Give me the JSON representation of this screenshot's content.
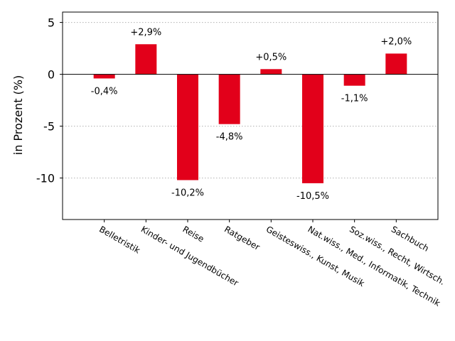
{
  "chart_data": {
    "type": "bar",
    "ylabel": "in Prozent (%)",
    "xlabel": "",
    "ylim": [
      -14,
      6
    ],
    "yticks": [
      5,
      0,
      -5,
      -10
    ],
    "ytick_labels": [
      "5",
      "0",
      "-5",
      "-10"
    ],
    "grid": "horizontal-dotted",
    "bar_color": "#e2001a",
    "categories": [
      "Belletristik",
      "Kinder- und Jugendbücher",
      "Reise",
      "Ratgeber",
      "Geisteswiss., Kunst, Musik",
      "Nat.wiss., Med., Informatik, Technik",
      "Soz.wiss., Recht, Wirtsch.",
      "Sachbuch"
    ],
    "values": [
      -0.4,
      2.9,
      -10.2,
      -4.8,
      0.5,
      -10.5,
      -1.1,
      2.0
    ],
    "data_labels": [
      "-0,4%",
      "+2,9%",
      "-10,2%",
      "-4,8%",
      "+0,5%",
      "-10,5%",
      "-1,1%",
      "+2,0%"
    ]
  }
}
